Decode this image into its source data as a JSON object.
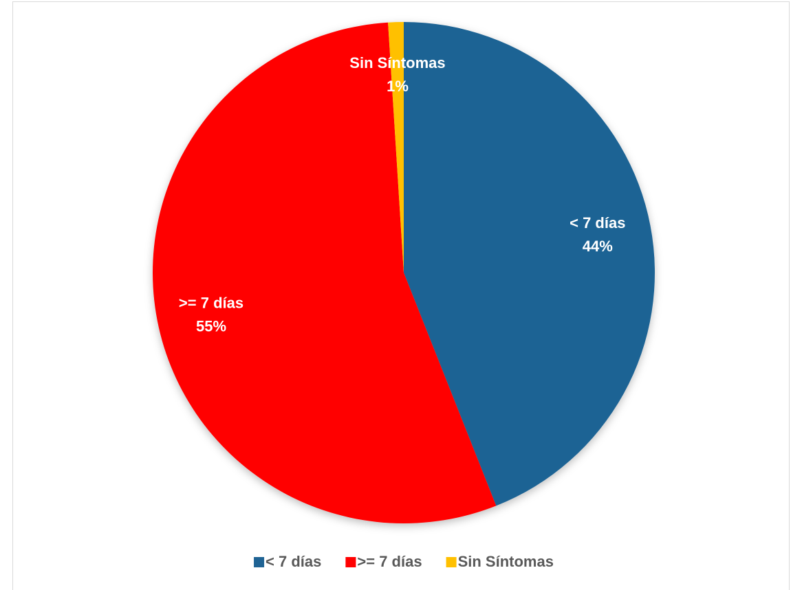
{
  "chart_data": {
    "type": "pie",
    "categories": [
      "< 7 días",
      ">= 7 días",
      "Sin Síntomas"
    ],
    "values": [
      44,
      55,
      1
    ],
    "value_labels": [
      "44%",
      "55%",
      "1%"
    ],
    "colors": [
      "#1f6394",
      "#ff0000",
      "#ffc000"
    ],
    "legend": "bottom"
  }
}
